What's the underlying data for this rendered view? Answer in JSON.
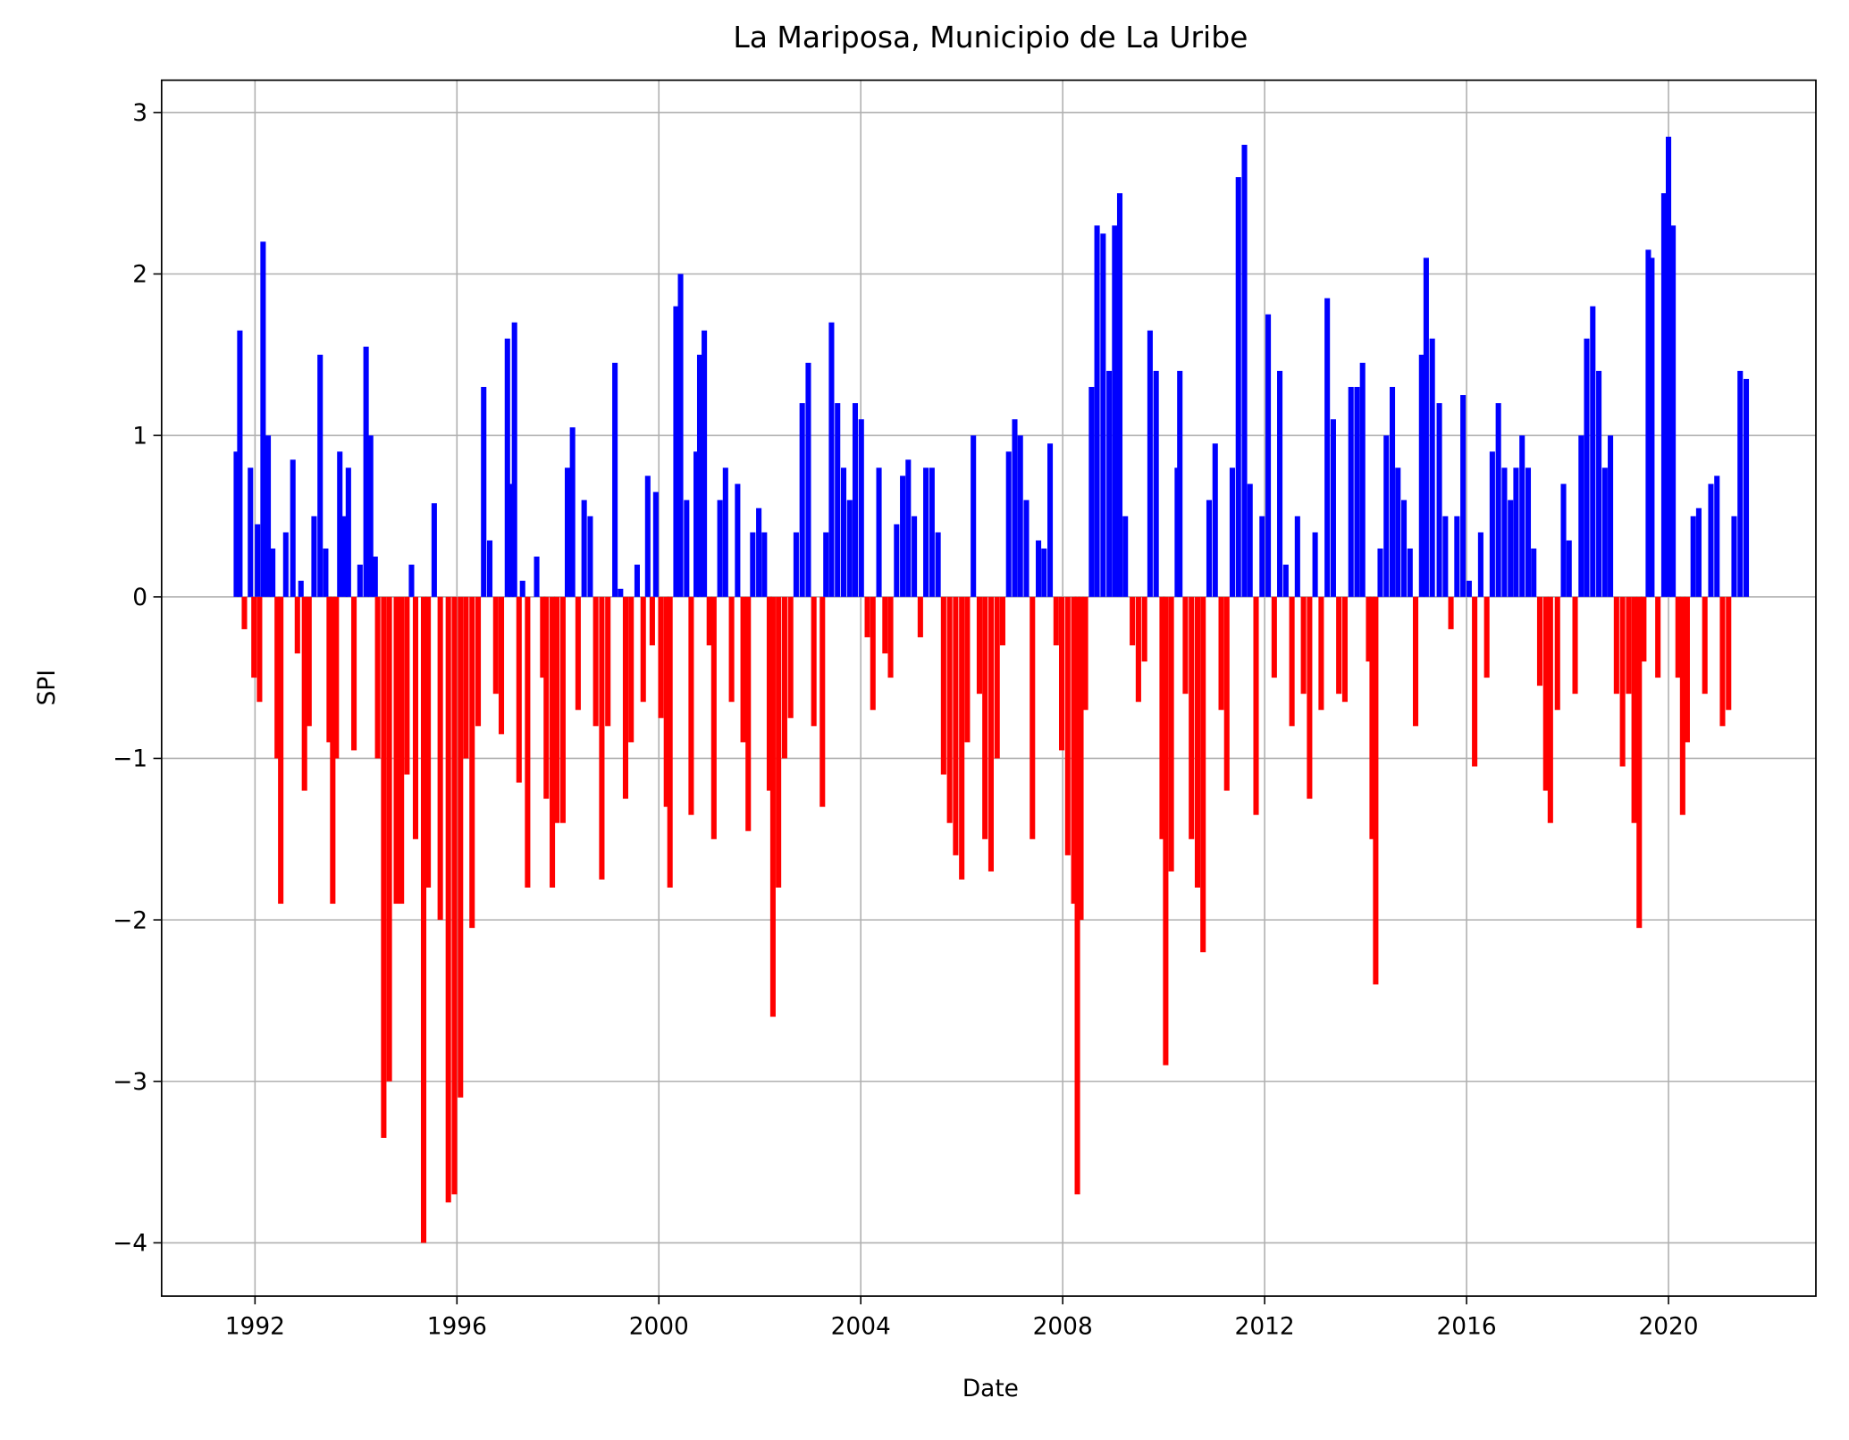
{
  "chart_data": {
    "type": "bar",
    "title": "La Mariposa, Municipio de La Uribe",
    "x_label": "Date",
    "y_label": "SPI",
    "positive_color": "#0000ff",
    "negative_color": "#ff0000",
    "grid": true,
    "xlim": [
      1990.15,
      2022.92
    ],
    "ylim": [
      -4.33,
      3.2
    ],
    "xticks": [
      1992,
      1996,
      2000,
      2004,
      2008,
      2012,
      2016,
      2020
    ],
    "yticks": [
      {
        "value": -4,
        "label": "−4"
      },
      {
        "value": -3,
        "label": "−3"
      },
      {
        "value": -2,
        "label": "−2"
      },
      {
        "value": -1,
        "label": "−1"
      },
      0,
      1,
      2,
      3
    ],
    "x": [
      1991.63,
      1991.7,
      1991.79,
      1991.91,
      1991.98,
      1992.05,
      1992.09,
      1992.16,
      1992.26,
      1992.35,
      1992.44,
      1992.51,
      1992.61,
      1992.75,
      1992.84,
      1992.91,
      1992.98,
      1993.07,
      1993.17,
      1993.29,
      1993.4,
      1993.47,
      1993.54,
      1993.61,
      1993.68,
      1993.78,
      1993.85,
      1993.96,
      1994.08,
      1994.2,
      1994.29,
      1994.38,
      1994.43,
      1994.55,
      1994.66,
      1994.8,
      1994.9,
      1995.01,
      1995.1,
      1995.18,
      1995.34,
      1995.43,
      1995.55,
      1995.67,
      1995.83,
      1995.95,
      1996.07,
      1996.18,
      1996.3,
      1996.42,
      1996.53,
      1996.65,
      1996.77,
      1996.88,
      1997.0,
      1997.07,
      1997.14,
      1997.23,
      1997.3,
      1997.4,
      1997.58,
      1997.7,
      1997.77,
      1997.89,
      1997.98,
      1998.1,
      1998.19,
      1998.29,
      1998.4,
      1998.52,
      1998.64,
      1998.75,
      1998.87,
      1998.99,
      1999.13,
      1999.24,
      1999.34,
      1999.45,
      1999.57,
      1999.69,
      1999.78,
      1999.87,
      1999.94,
      2000.04,
      2000.15,
      2000.22,
      2000.34,
      2000.43,
      2000.55,
      2000.64,
      2000.74,
      2000.81,
      2000.9,
      2001.0,
      2001.09,
      2001.21,
      2001.32,
      2001.44,
      2001.56,
      2001.67,
      2001.77,
      2001.86,
      2001.98,
      2002.09,
      2002.19,
      2002.26,
      2002.37,
      2002.49,
      2002.61,
      2002.72,
      2002.84,
      2002.96,
      2003.07,
      2003.24,
      2003.31,
      2003.42,
      2003.54,
      2003.66,
      2003.78,
      2003.89,
      2004.01,
      2004.13,
      2004.24,
      2004.36,
      2004.48,
      2004.59,
      2004.71,
      2004.83,
      2004.94,
      2005.06,
      2005.18,
      2005.29,
      2005.41,
      2005.53,
      2005.64,
      2005.76,
      2005.88,
      2006.0,
      2006.11,
      2006.23,
      2006.35,
      2006.46,
      2006.58,
      2006.7,
      2006.81,
      2006.93,
      2007.05,
      2007.16,
      2007.28,
      2007.4,
      2007.52,
      2007.63,
      2007.75,
      2007.87,
      2007.98,
      2008.1,
      2008.22,
      2008.29,
      2008.36,
      2008.45,
      2008.57,
      2008.68,
      2008.8,
      2008.92,
      2009.03,
      2009.13,
      2009.24,
      2009.38,
      2009.5,
      2009.62,
      2009.73,
      2009.85,
      2009.97,
      2010.04,
      2010.15,
      2010.27,
      2010.32,
      2010.43,
      2010.55,
      2010.67,
      2010.78,
      2010.9,
      2011.02,
      2011.14,
      2011.25,
      2011.36,
      2011.48,
      2011.6,
      2011.71,
      2011.83,
      2011.95,
      2012.07,
      2012.19,
      2012.3,
      2012.42,
      2012.54,
      2012.65,
      2012.77,
      2012.89,
      2013.0,
      2013.12,
      2013.24,
      2013.36,
      2013.47,
      2013.59,
      2013.71,
      2013.83,
      2013.94,
      2014.06,
      2014.13,
      2014.2,
      2014.29,
      2014.41,
      2014.53,
      2014.64,
      2014.76,
      2014.88,
      2014.99,
      2015.11,
      2015.2,
      2015.32,
      2015.46,
      2015.58,
      2015.69,
      2015.81,
      2015.93,
      2016.05,
      2016.16,
      2016.28,
      2016.4,
      2016.51,
      2016.63,
      2016.75,
      2016.87,
      2016.98,
      2017.1,
      2017.22,
      2017.33,
      2017.45,
      2017.57,
      2017.66,
      2017.8,
      2017.92,
      2018.03,
      2018.15,
      2018.27,
      2018.38,
      2018.5,
      2018.62,
      2018.74,
      2018.85,
      2018.97,
      2019.09,
      2019.21,
      2019.32,
      2019.42,
      2019.51,
      2019.6,
      2019.67,
      2019.79,
      2019.91,
      2020.0,
      2020.09,
      2020.19,
      2020.28,
      2020.37,
      2020.49,
      2020.6,
      2020.72,
      2020.84,
      2020.96,
      2021.07,
      2021.19,
      2021.3,
      2021.42,
      2021.54
    ],
    "values": [
      0.9,
      1.65,
      -0.2,
      0.8,
      -0.5,
      0.45,
      -0.65,
      2.2,
      1.0,
      0.3,
      -1.0,
      -1.9,
      0.4,
      0.85,
      -0.35,
      0.1,
      -1.2,
      -0.8,
      0.5,
      1.5,
      0.3,
      -0.9,
      -1.9,
      -1.0,
      0.9,
      0.5,
      0.8,
      -0.95,
      0.2,
      1.55,
      1.0,
      0.25,
      -1.0,
      -3.35,
      -3.0,
      -1.9,
      -1.9,
      -1.1,
      0.2,
      -1.5,
      -4.0,
      -1.8,
      0.58,
      -2.0,
      -3.75,
      -3.7,
      -3.1,
      -1.0,
      -2.05,
      -0.8,
      1.3,
      0.35,
      -0.6,
      -0.85,
      1.6,
      0.7,
      1.7,
      -1.15,
      0.1,
      -1.8,
      0.25,
      -0.5,
      -1.25,
      -1.8,
      -1.4,
      -1.4,
      0.8,
      1.05,
      -0.7,
      0.6,
      0.5,
      -0.8,
      -1.75,
      -0.8,
      1.45,
      0.05,
      -1.25,
      -0.9,
      0.2,
      -0.65,
      0.75,
      -0.3,
      0.65,
      -0.75,
      -1.3,
      -1.8,
      1.8,
      2.0,
      0.6,
      -1.35,
      0.9,
      1.5,
      1.65,
      -0.3,
      -1.5,
      0.6,
      0.8,
      -0.65,
      0.7,
      -0.9,
      -1.45,
      0.4,
      0.55,
      0.4,
      -1.2,
      -2.6,
      -1.8,
      -1.0,
      -0.75,
      0.4,
      1.2,
      1.45,
      -0.8,
      -1.3,
      0.4,
      1.7,
      1.2,
      0.8,
      0.6,
      1.2,
      1.1,
      -0.25,
      -0.7,
      0.8,
      -0.35,
      -0.5,
      0.45,
      0.75,
      0.85,
      0.5,
      -0.25,
      0.8,
      0.8,
      0.4,
      -1.1,
      -1.4,
      -1.6,
      -1.75,
      -0.9,
      1.0,
      -0.6,
      -1.5,
      -1.7,
      -1.0,
      -0.3,
      0.9,
      1.1,
      1.0,
      0.6,
      -1.5,
      0.35,
      0.3,
      0.95,
      -0.3,
      -0.95,
      -1.6,
      -1.9,
      -3.7,
      -2.0,
      -0.7,
      1.3,
      2.3,
      2.25,
      1.4,
      2.3,
      2.5,
      0.5,
      -0.3,
      -0.65,
      -0.4,
      1.65,
      1.4,
      -1.5,
      -2.9,
      -1.7,
      0.8,
      1.4,
      -0.6,
      -1.5,
      -1.8,
      -2.2,
      0.6,
      0.95,
      -0.7,
      -1.2,
      0.8,
      2.6,
      2.8,
      0.7,
      -1.35,
      0.5,
      1.75,
      -0.5,
      1.4,
      0.2,
      -0.8,
      0.5,
      -0.6,
      -1.25,
      0.4,
      -0.7,
      1.85,
      1.1,
      -0.6,
      -0.65,
      1.3,
      1.3,
      1.45,
      -0.4,
      -1.5,
      -2.4,
      0.3,
      1.0,
      1.3,
      0.8,
      0.6,
      0.3,
      -0.8,
      1.5,
      2.1,
      1.6,
      1.2,
      0.5,
      -0.2,
      0.5,
      1.25,
      0.1,
      -1.05,
      0.4,
      -0.5,
      0.9,
      1.2,
      0.8,
      0.6,
      0.8,
      1.0,
      0.8,
      0.3,
      -0.55,
      -1.2,
      -1.4,
      -0.7,
      0.7,
      0.35,
      -0.6,
      1.0,
      1.6,
      1.8,
      1.4,
      0.8,
      1.0,
      -0.6,
      -1.05,
      -0.6,
      -1.4,
      -2.05,
      -0.4,
      2.15,
      2.1,
      -0.5,
      2.5,
      2.85,
      2.3,
      -0.5,
      -1.35,
      -0.9,
      0.5,
      0.55,
      -0.6,
      0.7,
      0.75,
      -0.8,
      -0.7,
      0.5,
      1.4,
      1.35
    ]
  }
}
